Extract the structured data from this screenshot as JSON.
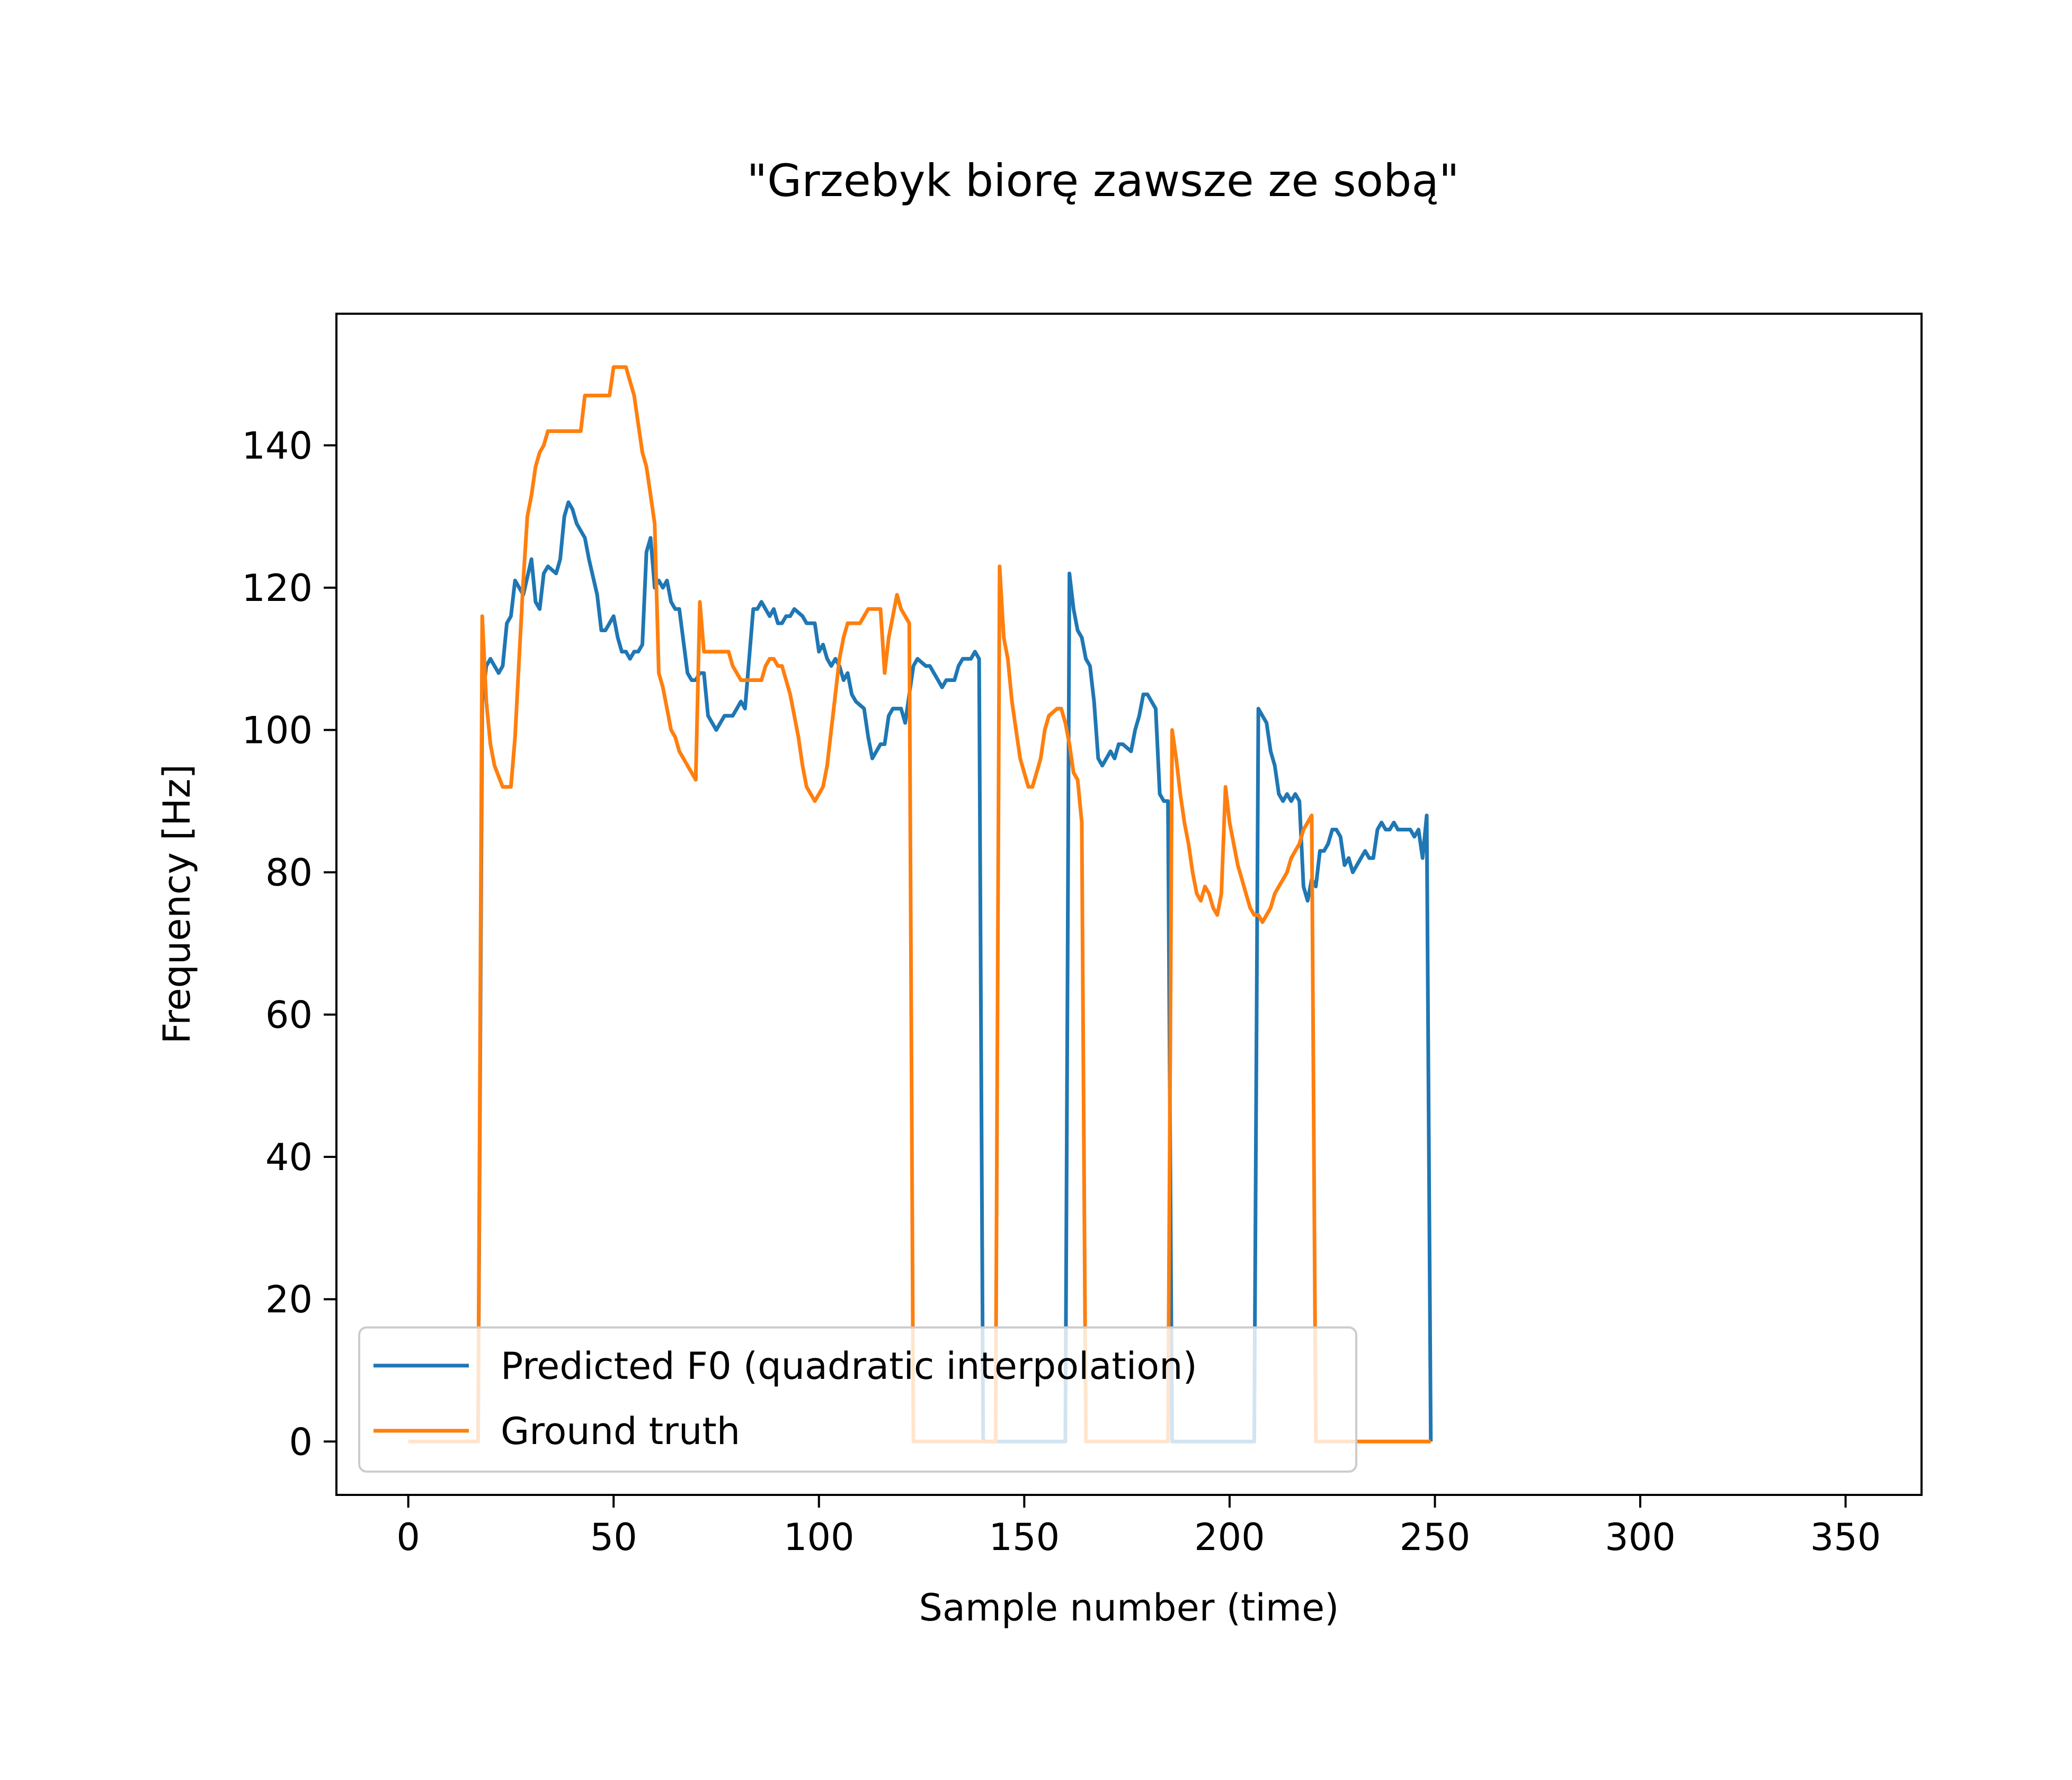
{
  "chart_data": {
    "type": "line",
    "title": "\"Grzebyk biorę zawsze ze sobą\"",
    "xlabel": "Sample number (time)",
    "ylabel": "Frequency [Hz]",
    "xlim": [
      -17.5,
      368.5
    ],
    "ylim": [
      -7.5,
      158.5
    ],
    "xticks": [
      0,
      50,
      100,
      150,
      200,
      250,
      300,
      350
    ],
    "yticks": [
      0,
      20,
      40,
      60,
      80,
      100,
      120,
      140
    ],
    "grid": false,
    "legend": {
      "placement": "lower-left"
    },
    "series": [
      {
        "name": "Predicted F0 (quadratic interpolation)",
        "color": "#1f77b4",
        "points": [
          [
            17,
            0
          ],
          [
            18,
            104
          ],
          [
            19,
            109
          ],
          [
            20,
            110
          ],
          [
            22,
            108
          ],
          [
            23,
            109
          ],
          [
            24,
            115
          ],
          [
            25,
            116
          ],
          [
            26,
            121
          ],
          [
            28,
            119
          ],
          [
            30,
            124
          ],
          [
            31,
            118
          ],
          [
            32,
            117
          ],
          [
            33,
            122
          ],
          [
            34,
            123
          ],
          [
            36,
            122
          ],
          [
            37,
            124
          ],
          [
            38,
            130
          ],
          [
            39,
            132
          ],
          [
            40,
            131
          ],
          [
            41,
            129
          ],
          [
            43,
            127
          ],
          [
            44,
            124
          ],
          [
            46,
            119
          ],
          [
            47,
            114
          ],
          [
            48,
            114
          ],
          [
            50,
            116
          ],
          [
            51,
            113
          ],
          [
            52,
            111
          ],
          [
            53,
            111
          ],
          [
            54,
            110
          ],
          [
            55,
            111
          ],
          [
            56,
            111
          ],
          [
            57,
            112
          ],
          [
            58,
            125
          ],
          [
            59,
            127
          ],
          [
            60,
            120
          ],
          [
            61,
            121
          ],
          [
            62,
            120
          ],
          [
            63,
            121
          ],
          [
            64,
            118
          ],
          [
            65,
            117
          ],
          [
            66,
            117
          ],
          [
            68,
            108
          ],
          [
            69,
            107
          ],
          [
            70,
            107
          ],
          [
            71,
            108
          ],
          [
            72,
            108
          ],
          [
            73,
            102
          ],
          [
            75,
            100
          ],
          [
            76,
            101
          ],
          [
            77,
            102
          ],
          [
            79,
            102
          ],
          [
            80,
            103
          ],
          [
            81,
            104
          ],
          [
            82,
            103
          ],
          [
            84,
            117
          ],
          [
            85,
            117
          ],
          [
            86,
            118
          ],
          [
            87,
            117
          ],
          [
            88,
            116
          ],
          [
            89,
            117
          ],
          [
            90,
            115
          ],
          [
            91,
            115
          ],
          [
            92,
            116
          ],
          [
            93,
            116
          ],
          [
            94,
            117
          ],
          [
            96,
            116
          ],
          [
            97,
            115
          ],
          [
            99,
            115
          ],
          [
            100,
            111
          ],
          [
            101,
            112
          ],
          [
            102,
            110
          ],
          [
            103,
            109
          ],
          [
            104,
            110
          ],
          [
            105,
            109
          ],
          [
            106,
            107
          ],
          [
            107,
            108
          ],
          [
            108,
            105
          ],
          [
            109,
            104
          ],
          [
            111,
            103
          ],
          [
            112,
            99
          ],
          [
            113,
            96
          ],
          [
            114,
            97
          ],
          [
            115,
            98
          ],
          [
            116,
            98
          ],
          [
            117,
            102
          ],
          [
            118,
            103
          ],
          [
            120,
            103
          ],
          [
            121,
            101
          ],
          [
            122,
            105
          ],
          [
            123,
            109
          ],
          [
            124,
            110
          ],
          [
            126,
            109
          ],
          [
            127,
            109
          ],
          [
            128,
            108
          ],
          [
            129,
            107
          ],
          [
            130,
            106
          ],
          [
            131,
            107
          ],
          [
            133,
            107
          ],
          [
            134,
            109
          ],
          [
            135,
            110
          ],
          [
            137,
            110
          ],
          [
            138,
            111
          ],
          [
            139,
            110
          ],
          [
            140,
            0
          ],
          [
            160,
            0
          ],
          [
            161,
            122
          ],
          [
            162,
            117
          ],
          [
            163,
            114
          ],
          [
            164,
            113
          ],
          [
            165,
            110
          ],
          [
            166,
            109
          ],
          [
            167,
            104
          ],
          [
            168,
            96
          ],
          [
            169,
            95
          ],
          [
            170,
            96
          ],
          [
            171,
            97
          ],
          [
            172,
            96
          ],
          [
            173,
            98
          ],
          [
            174,
            98
          ],
          [
            176,
            97
          ],
          [
            177,
            100
          ],
          [
            178,
            102
          ],
          [
            179,
            105
          ],
          [
            180,
            105
          ],
          [
            181,
            104
          ],
          [
            182,
            103
          ],
          [
            183,
            91
          ],
          [
            184,
            90
          ],
          [
            185,
            90
          ],
          [
            186,
            0
          ],
          [
            206,
            0
          ],
          [
            207,
            103
          ],
          [
            208,
            102
          ],
          [
            209,
            101
          ],
          [
            210,
            97
          ],
          [
            211,
            95
          ],
          [
            212,
            91
          ],
          [
            213,
            90
          ],
          [
            214,
            91
          ],
          [
            215,
            90
          ],
          [
            216,
            91
          ],
          [
            217,
            90
          ],
          [
            218,
            78
          ],
          [
            219,
            76
          ],
          [
            220,
            79
          ],
          [
            221,
            78
          ],
          [
            222,
            83
          ],
          [
            223,
            83
          ],
          [
            224,
            84
          ],
          [
            225,
            86
          ],
          [
            226,
            86
          ],
          [
            227,
            85
          ],
          [
            228,
            81
          ],
          [
            229,
            82
          ],
          [
            230,
            80
          ],
          [
            231,
            81
          ],
          [
            232,
            82
          ],
          [
            233,
            83
          ],
          [
            234,
            82
          ],
          [
            235,
            82
          ],
          [
            236,
            86
          ],
          [
            237,
            87
          ],
          [
            238,
            86
          ],
          [
            239,
            86
          ],
          [
            240,
            87
          ],
          [
            241,
            86
          ],
          [
            244,
            86
          ],
          [
            245,
            85
          ],
          [
            246,
            86
          ],
          [
            247,
            82
          ],
          [
            248,
            88
          ],
          [
            249,
            0
          ]
        ]
      },
      {
        "name": "Ground truth",
        "color": "#ff7f0e",
        "points": [
          [
            0,
            0
          ],
          [
            17,
            0
          ],
          [
            18,
            116
          ],
          [
            19,
            104
          ],
          [
            20,
            98
          ],
          [
            21,
            95
          ],
          [
            23,
            92
          ],
          [
            25,
            92
          ],
          [
            26,
            99
          ],
          [
            27,
            110
          ],
          [
            28,
            121
          ],
          [
            29,
            130
          ],
          [
            30,
            133
          ],
          [
            31,
            137
          ],
          [
            32,
            139
          ],
          [
            33,
            140
          ],
          [
            34,
            142
          ],
          [
            42,
            142
          ],
          [
            43,
            147
          ],
          [
            49,
            147
          ],
          [
            50,
            151
          ],
          [
            53,
            151
          ],
          [
            54,
            149
          ],
          [
            55,
            147
          ],
          [
            56,
            143
          ],
          [
            57,
            139
          ],
          [
            58,
            137
          ],
          [
            59,
            133
          ],
          [
            60,
            129
          ],
          [
            61,
            108
          ],
          [
            62,
            106
          ],
          [
            63,
            103
          ],
          [
            64,
            100
          ],
          [
            65,
            99
          ],
          [
            66,
            97
          ],
          [
            67,
            96
          ],
          [
            68,
            95
          ],
          [
            69,
            94
          ],
          [
            70,
            93
          ],
          [
            71,
            118
          ],
          [
            72,
            111
          ],
          [
            78,
            111
          ],
          [
            79,
            109
          ],
          [
            80,
            108
          ],
          [
            81,
            107
          ],
          [
            86,
            107
          ],
          [
            87,
            109
          ],
          [
            88,
            110
          ],
          [
            89,
            110
          ],
          [
            90,
            109
          ],
          [
            91,
            109
          ],
          [
            92,
            107
          ],
          [
            93,
            105
          ],
          [
            94,
            102
          ],
          [
            95,
            99
          ],
          [
            96,
            95
          ],
          [
            97,
            92
          ],
          [
            98,
            91
          ],
          [
            99,
            90
          ],
          [
            100,
            91
          ],
          [
            101,
            92
          ],
          [
            102,
            95
          ],
          [
            103,
            100
          ],
          [
            104,
            105
          ],
          [
            105,
            110
          ],
          [
            106,
            113
          ],
          [
            107,
            115
          ],
          [
            110,
            115
          ],
          [
            111,
            116
          ],
          [
            112,
            117
          ],
          [
            115,
            117
          ],
          [
            116,
            108
          ],
          [
            117,
            113
          ],
          [
            118,
            116
          ],
          [
            119,
            119
          ],
          [
            120,
            117
          ],
          [
            121,
            116
          ],
          [
            122,
            115
          ],
          [
            123,
            0
          ],
          [
            143,
            0
          ],
          [
            144,
            123
          ],
          [
            145,
            113
          ],
          [
            146,
            110
          ],
          [
            147,
            104
          ],
          [
            148,
            100
          ],
          [
            149,
            96
          ],
          [
            150,
            94
          ],
          [
            151,
            92
          ],
          [
            152,
            92
          ],
          [
            153,
            94
          ],
          [
            154,
            96
          ],
          [
            155,
            100
          ],
          [
            156,
            102
          ],
          [
            158,
            103
          ],
          [
            159,
            103
          ],
          [
            160,
            101
          ],
          [
            161,
            98
          ],
          [
            162,
            94
          ],
          [
            163,
            93
          ],
          [
            164,
            87
          ],
          [
            165,
            0
          ],
          [
            185,
            0
          ],
          [
            186,
            100
          ],
          [
            187,
            96
          ],
          [
            188,
            91
          ],
          [
            189,
            87
          ],
          [
            190,
            84
          ],
          [
            191,
            80
          ],
          [
            192,
            77
          ],
          [
            193,
            76
          ],
          [
            194,
            78
          ],
          [
            195,
            77
          ],
          [
            196,
            75
          ],
          [
            197,
            74
          ],
          [
            198,
            77
          ],
          [
            199,
            92
          ],
          [
            200,
            87
          ],
          [
            201,
            84
          ],
          [
            202,
            81
          ],
          [
            203,
            79
          ],
          [
            204,
            77
          ],
          [
            205,
            75
          ],
          [
            206,
            74
          ],
          [
            207,
            74
          ],
          [
            208,
            73
          ],
          [
            209,
            74
          ],
          [
            210,
            75
          ],
          [
            211,
            77
          ],
          [
            212,
            78
          ],
          [
            213,
            79
          ],
          [
            214,
            80
          ],
          [
            215,
            82
          ],
          [
            216,
            83
          ],
          [
            217,
            84
          ],
          [
            218,
            86
          ],
          [
            219,
            87
          ],
          [
            220,
            88
          ],
          [
            221,
            0
          ],
          [
            249,
            0
          ]
        ]
      }
    ]
  }
}
